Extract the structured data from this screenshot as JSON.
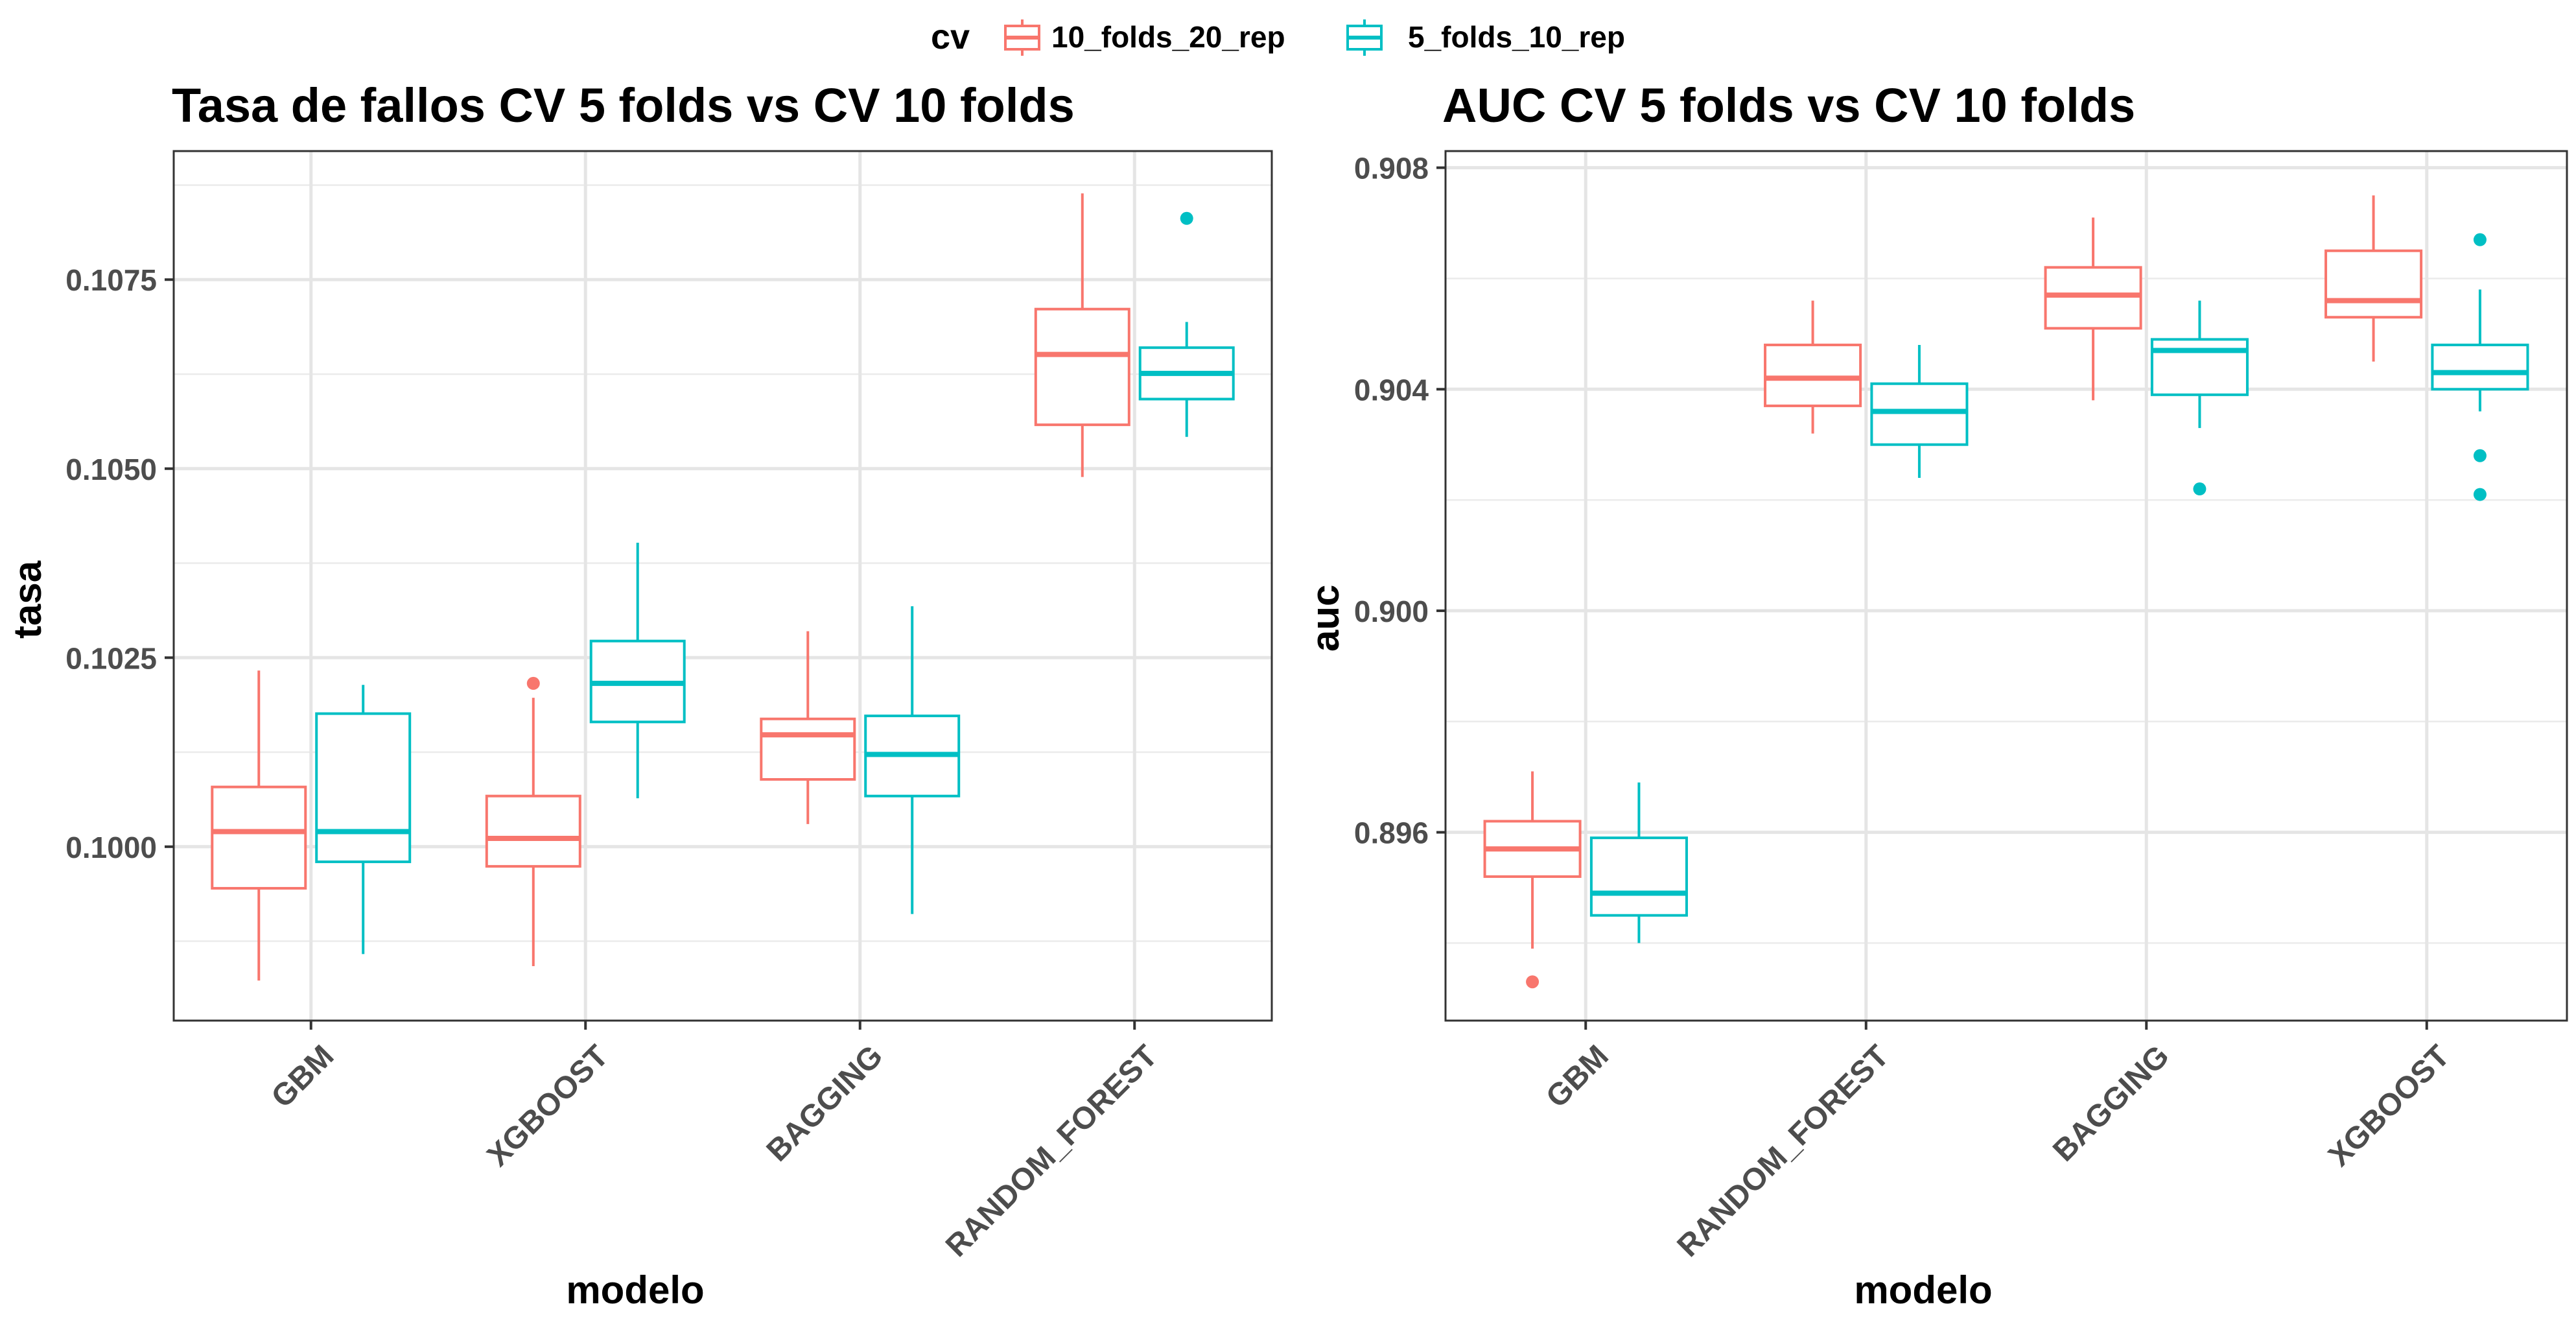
{
  "legend": {
    "title": "cv",
    "items": [
      {
        "label": "10_folds_20_rep",
        "color": "#F8766D"
      },
      {
        "label": "5_folds_10_rep",
        "color": "#00BFC4"
      }
    ]
  },
  "chart_data": [
    {
      "type": "box",
      "title": "Tasa de fallos CV 5 folds vs CV 10 folds",
      "xlabel": "modelo",
      "ylabel": "tasa",
      "ylim": [
        0.0977,
        0.1092
      ],
      "yticks": [
        0.1,
        0.1025,
        0.105,
        0.1075
      ],
      "ytick_labels": [
        "0.1000",
        "0.1025",
        "0.1050",
        "0.1075"
      ],
      "categories": [
        "GBM",
        "XGBOOST",
        "BAGGING",
        "RANDOM_FOREST"
      ],
      "series": [
        {
          "name": "10_folds_20_rep",
          "boxes": [
            {
              "category": "GBM",
              "low": 0.09823,
              "q1": 0.09945,
              "median": 0.1002,
              "q3": 0.10079,
              "high": 0.10233,
              "outliers": []
            },
            {
              "category": "XGBOOST",
              "low": 0.09842,
              "q1": 0.09974,
              "median": 0.10011,
              "q3": 0.10067,
              "high": 0.10197,
              "outliers": [
                0.10216
              ]
            },
            {
              "category": "BAGGING",
              "low": 0.1003,
              "q1": 0.10089,
              "median": 0.10148,
              "q3": 0.10169,
              "high": 0.10285,
              "outliers": []
            },
            {
              "category": "RANDOM_FOREST",
              "low": 0.10489,
              "q1": 0.10558,
              "median": 0.10651,
              "q3": 0.10711,
              "high": 0.10864,
              "outliers": []
            }
          ]
        },
        {
          "name": "5_folds_10_rep",
          "boxes": [
            {
              "category": "GBM",
              "low": 0.09858,
              "q1": 0.0998,
              "median": 0.1002,
              "q3": 0.10176,
              "high": 0.10214,
              "outliers": []
            },
            {
              "category": "XGBOOST",
              "low": 0.10064,
              "q1": 0.10165,
              "median": 0.10216,
              "q3": 0.10272,
              "high": 0.10402,
              "outliers": []
            },
            {
              "category": "BAGGING",
              "low": 0.09911,
              "q1": 0.10067,
              "median": 0.10122,
              "q3": 0.10173,
              "high": 0.10318,
              "outliers": []
            },
            {
              "category": "RANDOM_FOREST",
              "low": 0.10542,
              "q1": 0.10592,
              "median": 0.10626,
              "q3": 0.1066,
              "high": 0.10694,
              "outliers": [
                0.10831
              ]
            }
          ]
        }
      ]
    },
    {
      "type": "box",
      "title": "AUC CV 5 folds vs CV 10 folds",
      "xlabel": "modelo",
      "ylabel": "auc",
      "ylim": [
        0.8926,
        0.9083
      ],
      "yticks": [
        0.896,
        0.9,
        0.904,
        0.908
      ],
      "ytick_labels": [
        "0.896",
        "0.900",
        "0.904",
        "0.908"
      ],
      "categories": [
        "GBM",
        "RANDOM_FOREST",
        "BAGGING",
        "XGBOOST"
      ],
      "series": [
        {
          "name": "10_folds_20_rep",
          "boxes": [
            {
              "category": "GBM",
              "low": 0.8939,
              "q1": 0.8952,
              "median": 0.8957,
              "q3": 0.8962,
              "high": 0.8971,
              "outliers": [
                0.8933
              ]
            },
            {
              "category": "RANDOM_FOREST",
              "low": 0.9032,
              "q1": 0.9037,
              "median": 0.9042,
              "q3": 0.9048,
              "high": 0.9056,
              "outliers": []
            },
            {
              "category": "BAGGING",
              "low": 0.9038,
              "q1": 0.9051,
              "median": 0.9057,
              "q3": 0.9062,
              "high": 0.9071,
              "outliers": []
            },
            {
              "category": "XGBOOST",
              "low": 0.9045,
              "q1": 0.9053,
              "median": 0.9056,
              "q3": 0.9065,
              "high": 0.9075,
              "outliers": []
            }
          ]
        },
        {
          "name": "5_folds_10_rep",
          "boxes": [
            {
              "category": "GBM",
              "low": 0.894,
              "q1": 0.8945,
              "median": 0.8949,
              "q3": 0.8959,
              "high": 0.8969,
              "outliers": []
            },
            {
              "category": "RANDOM_FOREST",
              "low": 0.9024,
              "q1": 0.903,
              "median": 0.9036,
              "q3": 0.9041,
              "high": 0.9048,
              "outliers": []
            },
            {
              "category": "BAGGING",
              "low": 0.9033,
              "q1": 0.9039,
              "median": 0.9047,
              "q3": 0.9049,
              "high": 0.9056,
              "outliers": [
                0.9022
              ]
            },
            {
              "category": "XGBOOST",
              "low": 0.9036,
              "q1": 0.904,
              "median": 0.9043,
              "q3": 0.9048,
              "high": 0.9058,
              "outliers": [
                0.9067,
                0.9028,
                0.9021
              ]
            }
          ]
        }
      ]
    }
  ]
}
